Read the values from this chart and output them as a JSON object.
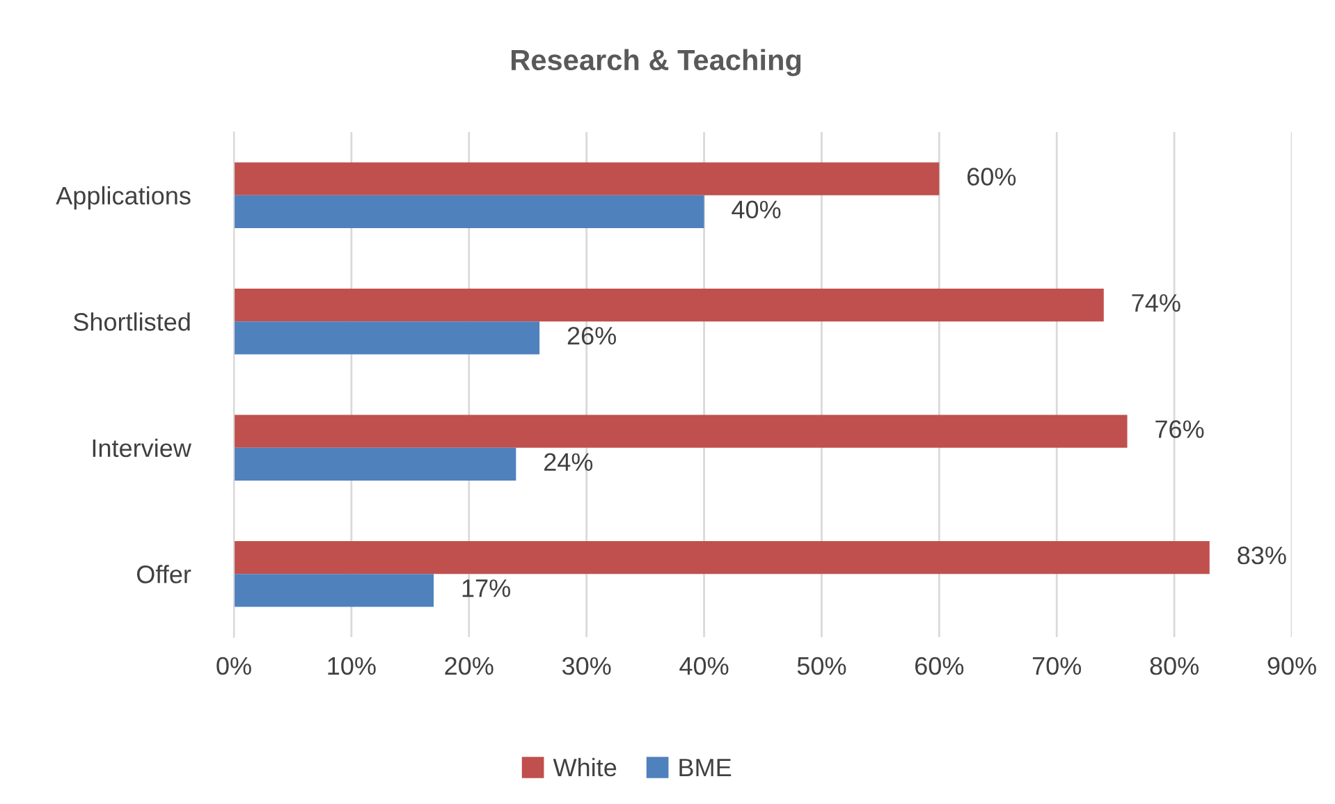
{
  "chart_data": {
    "type": "bar",
    "orientation": "horizontal",
    "title": "Research & Teaching",
    "categories": [
      "Applications",
      "Shortlisted",
      "Interview",
      "Offer"
    ],
    "series": [
      {
        "name": "White",
        "color": "#c0504d",
        "values": [
          60,
          74,
          76,
          83
        ],
        "value_labels": [
          "60%",
          "74%",
          "76%",
          "83%"
        ]
      },
      {
        "name": "BME",
        "color": "#4f81bd",
        "values": [
          40,
          26,
          24,
          17
        ],
        "value_labels": [
          "40%",
          "26%",
          "24%",
          "17%"
        ]
      }
    ],
    "xlim": [
      0,
      90
    ],
    "xticks": [
      {
        "value": 0,
        "label": "0%"
      },
      {
        "value": 10,
        "label": "10%"
      },
      {
        "value": 20,
        "label": "20%"
      },
      {
        "value": 30,
        "label": "30%"
      },
      {
        "value": 40,
        "label": "40%"
      },
      {
        "value": 50,
        "label": "50%"
      },
      {
        "value": 60,
        "label": "60%"
      },
      {
        "value": 70,
        "label": "70%"
      },
      {
        "value": 80,
        "label": "80%"
      },
      {
        "value": 90,
        "label": "90%"
      }
    ],
    "grid": "x",
    "legend": "bottom"
  }
}
